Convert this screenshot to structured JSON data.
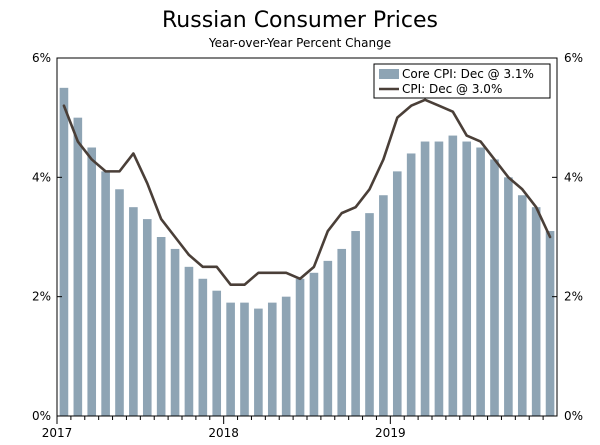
{
  "chart_data": {
    "type": "bar+line",
    "title": "Russian Consumer Prices",
    "subtitle": "Year-over-Year Percent Change",
    "ylim": [
      0,
      6
    ],
    "y_ticks": [
      0,
      2,
      4,
      6
    ],
    "y_tick_labels": [
      "0%",
      "2%",
      "4%",
      "6%"
    ],
    "x_tick_labels": [
      {
        "label": "2017",
        "index": 0
      },
      {
        "label": "2018",
        "index": 12
      },
      {
        "label": "2019",
        "index": 24
      }
    ],
    "months": [
      "Jan 2017",
      "Feb 2017",
      "Mar 2017",
      "Apr 2017",
      "May 2017",
      "Jun 2017",
      "Jul 2017",
      "Aug 2017",
      "Sep 2017",
      "Oct 2017",
      "Nov 2017",
      "Dec 2017",
      "Jan 2018",
      "Feb 2018",
      "Mar 2018",
      "Apr 2018",
      "May 2018",
      "Jun 2018",
      "Jul 2018",
      "Aug 2018",
      "Sep 2018",
      "Oct 2018",
      "Nov 2018",
      "Dec 2018",
      "Jan 2019",
      "Feb 2019",
      "Mar 2019",
      "Apr 2019",
      "May 2019",
      "Jun 2019",
      "Jul 2019",
      "Aug 2019",
      "Sep 2019",
      "Oct 2019",
      "Nov 2019",
      "Dec 2019"
    ],
    "series": [
      {
        "name": "Core CPI",
        "legend": "Core CPI: Dec @ 3.1%",
        "kind": "bar",
        "color": "#8ea4b4",
        "values": [
          5.5,
          5.0,
          4.5,
          4.1,
          3.8,
          3.5,
          3.3,
          3.0,
          2.8,
          2.5,
          2.3,
          2.1,
          1.9,
          1.9,
          1.8,
          1.9,
          2.0,
          2.3,
          2.4,
          2.6,
          2.8,
          3.1,
          3.4,
          3.7,
          4.1,
          4.4,
          4.6,
          4.6,
          4.7,
          4.6,
          4.5,
          4.3,
          4.0,
          3.7,
          3.5,
          3.1
        ]
      },
      {
        "name": "CPI",
        "legend": "CPI: Dec @ 3.0%",
        "kind": "line",
        "color": "#4a3f38",
        "values": [
          5.2,
          4.6,
          4.3,
          4.1,
          4.1,
          4.4,
          3.9,
          3.3,
          3.0,
          2.7,
          2.5,
          2.5,
          2.2,
          2.2,
          2.4,
          2.4,
          2.4,
          2.3,
          2.5,
          3.1,
          3.4,
          3.5,
          3.8,
          4.3,
          5.0,
          5.2,
          5.3,
          5.2,
          5.1,
          4.7,
          4.6,
          4.3,
          4.0,
          3.8,
          3.5,
          3.0
        ]
      }
    ],
    "legend_position": "top-right"
  }
}
